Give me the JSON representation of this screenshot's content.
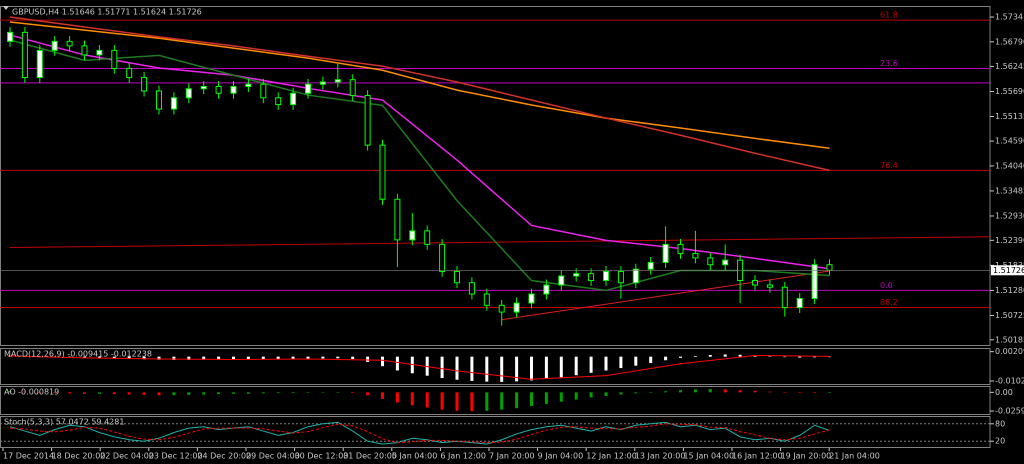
{
  "chart_data": [
    {
      "type": "candlestick",
      "title": "GBPUSD,H4  1.51646 1.51771 1.51624 1.51726",
      "x_labels": [
        "17 Dec 2014",
        "18 Dec 20:00",
        "22 Dec 04:00",
        "23 Dec 12:00",
        "24 Dec 20:00",
        "29 Dec 04:00",
        "30 Dec 12:00",
        "31 Dec 20:00",
        "5 Jan 04:00",
        "6 Jan 12:00",
        "7 Jan 20:00",
        "9 Jan 04:00",
        "12 Jan 12:00",
        "13 Jan 20:00",
        "15 Jan 04:00",
        "16 Jan 12:00",
        "19 Jan 20:00",
        "21 Jan 04:00"
      ],
      "open": [
        1.568,
        1.57,
        1.56,
        1.566,
        1.568,
        1.567,
        1.565,
        1.566,
        1.562,
        1.56,
        1.557,
        1.553,
        1.5555,
        1.5575,
        1.558,
        1.5565,
        1.558,
        1.5585,
        1.5555,
        1.554,
        1.5565,
        1.5585,
        1.559,
        1.5595,
        1.556,
        1.545,
        1.533,
        1.524,
        1.526,
        1.523,
        1.517,
        1.5145,
        1.512,
        1.5095,
        1.508,
        1.51,
        1.512,
        1.514,
        1.516,
        1.5165,
        1.515,
        1.517,
        1.5145,
        1.5175,
        1.519,
        1.523,
        1.521,
        1.52,
        1.5185,
        1.5195,
        1.515,
        1.514,
        1.5135,
        1.509,
        1.511,
        1.5185
      ],
      "high": [
        1.5712,
        1.5712,
        1.5672,
        1.5692,
        1.5692,
        1.5682,
        1.5672,
        1.5672,
        1.5632,
        1.5612,
        1.5582,
        1.5567,
        1.5587,
        1.5592,
        1.5592,
        1.5592,
        1.5597,
        1.5597,
        1.5567,
        1.5577,
        1.5597,
        1.5602,
        1.563,
        1.5607,
        1.5572,
        1.5462,
        1.5342,
        1.53,
        1.5272,
        1.5242,
        1.5182,
        1.5157,
        1.5132,
        1.5107,
        1.5112,
        1.5132,
        1.5152,
        1.5172,
        1.5177,
        1.5177,
        1.5182,
        1.5182,
        1.5187,
        1.5202,
        1.527,
        1.5242,
        1.526,
        1.5212,
        1.523,
        1.5207,
        1.5162,
        1.5152,
        1.5147,
        1.5122,
        1.5197,
        1.5197
      ],
      "low": [
        1.5668,
        1.5588,
        1.5588,
        1.5648,
        1.5658,
        1.5638,
        1.5638,
        1.5608,
        1.5588,
        1.5558,
        1.5518,
        1.5518,
        1.5543,
        1.5563,
        1.5553,
        1.5553,
        1.5568,
        1.5543,
        1.5528,
        1.5528,
        1.5553,
        1.5573,
        1.5578,
        1.5548,
        1.5438,
        1.5318,
        1.518,
        1.5228,
        1.5218,
        1.5158,
        1.5133,
        1.5108,
        1.5083,
        1.505,
        1.5068,
        1.5088,
        1.5108,
        1.5128,
        1.5148,
        1.5138,
        1.5138,
        1.511,
        1.5133,
        1.5163,
        1.5178,
        1.5198,
        1.5188,
        1.5173,
        1.5173,
        1.51,
        1.5128,
        1.5123,
        1.507,
        1.5078,
        1.5098,
        1.5161
      ],
      "close": [
        1.57,
        1.56,
        1.566,
        1.568,
        1.567,
        1.565,
        1.566,
        1.562,
        1.56,
        1.557,
        1.553,
        1.5555,
        1.5575,
        1.558,
        1.5565,
        1.558,
        1.5585,
        1.5555,
        1.554,
        1.5565,
        1.5585,
        1.559,
        1.5595,
        1.556,
        1.545,
        1.533,
        1.524,
        1.526,
        1.523,
        1.517,
        1.5145,
        1.512,
        1.5095,
        1.508,
        1.51,
        1.512,
        1.514,
        1.516,
        1.5165,
        1.515,
        1.517,
        1.5145,
        1.5175,
        1.519,
        1.523,
        1.521,
        1.52,
        1.5185,
        1.5195,
        1.515,
        1.514,
        1.5135,
        1.509,
        1.511,
        1.5185,
        1.51726
      ],
      "bull_color": "#ffffff",
      "bear_color": "#000000",
      "wick_color": "#00ff00",
      "ylim": [
        1.5007,
        1.5754
      ],
      "yticks": [
        1.5734,
        {
          "value": 1.5679,
          "label": "1.56790"
        },
        1.56245,
        {
          "value": 1.5569,
          "label": "1.55690"
        },
        1.55135,
        {
          "value": 1.5459,
          "label": "1.54590"
        },
        {
          "value": 1.5404,
          "label": "1.54040"
        },
        1.53485,
        {
          "value": 1.5293,
          "label": "1.52930"
        },
        {
          "value": 1.5239,
          "label": "1.52390"
        },
        1.51835,
        {
          "value": 1.5128,
          "label": "1.51280"
        },
        1.50725,
        1.50185
      ],
      "ma_x": [
        0,
        5,
        10,
        15,
        20,
        25,
        30,
        35,
        40,
        45,
        50,
        55
      ],
      "moving_averages": [
        {
          "color": "#ff8c00",
          "values": [
            1.5723,
            1.5705,
            1.5687,
            1.5665,
            1.5643,
            1.5616,
            1.5572,
            1.5539,
            1.551,
            1.5488,
            1.5465,
            1.5443
          ]
        },
        {
          "color": "#d2312c",
          "values": [
            1.5734,
            1.5712,
            1.569,
            1.567,
            1.5647,
            1.5625,
            1.559,
            1.555,
            1.551,
            1.5472,
            1.5432,
            1.5394
          ]
        },
        {
          "color": "#ee22ee",
          "values": [
            1.5694,
            1.565,
            1.5621,
            1.5605,
            1.5576,
            1.555,
            1.5417,
            1.5272,
            1.5239,
            1.5221,
            1.5199,
            1.5176
          ]
        },
        {
          "color": "#1f7a1f",
          "values": [
            1.5683,
            1.5638,
            1.5649,
            1.5605,
            1.5561,
            1.5538,
            1.5327,
            1.515,
            1.5128,
            1.5172,
            1.5172,
            1.5161
          ]
        }
      ],
      "levels": [
        {
          "label": "61.8",
          "value": 1.5727,
          "color": "#c00000"
        },
        {
          "label": "23.6",
          "value": 1.562,
          "color": "#c000c0"
        },
        {
          "value": 1.5588,
          "color": "#c000c0"
        },
        {
          "label": "76.4",
          "value": 1.5394,
          "color": "#c00000"
        },
        {
          "label": "0.0",
          "value": 1.5128,
          "color": "#c000c0"
        },
        {
          "label": "88.2",
          "value": 1.509,
          "color": "#c00000"
        }
      ],
      "trendlines": [
        {
          "color": "#c00000",
          "x": [
            0,
            66
          ],
          "values": [
            1.5223,
            1.5247
          ]
        },
        {
          "color": "#e02020",
          "x": [
            33,
            55
          ],
          "values": [
            1.5063,
            1.5171
          ]
        }
      ]
    },
    {
      "type": "bar",
      "title": "MACD(12,26,9) -0.009415 -0.012238",
      "color": "#ffffff",
      "values": [
        0.0005,
        0.0002,
        -0.0002,
        -0.0003,
        -0.0004,
        -0.0006,
        -0.0007,
        -0.0008,
        -0.0009,
        -0.0011,
        -0.0013,
        -0.0014,
        -0.0014,
        -0.0013,
        -0.0013,
        -0.0012,
        -0.0011,
        -0.0011,
        -0.0011,
        -0.001,
        -0.0009,
        -0.0008,
        -0.0007,
        -0.001,
        -0.0022,
        -0.004,
        -0.0058,
        -0.007,
        -0.008,
        -0.009,
        -0.0097,
        -0.0102,
        -0.0105,
        -0.0106,
        -0.0104,
        -0.01,
        -0.0094,
        -0.0087,
        -0.0078,
        -0.0068,
        -0.0058,
        -0.0048,
        -0.0038,
        -0.0027,
        -0.0015,
        -0.0005,
        0.0003,
        0.0007,
        0.0009,
        0.0008,
        0.0005,
        0.0002,
        -0.0001,
        -0.0004,
        -0.0003,
        -0.0002
      ],
      "signal_x": [
        0,
        5,
        10,
        15,
        20,
        25,
        30,
        35,
        40,
        45,
        50,
        55
      ],
      "signal": {
        "color": "#ff0000",
        "values": [
          0.0003,
          -0.0005,
          -0.001,
          -0.0012,
          -0.001,
          -0.0015,
          -0.006,
          -0.0095,
          -0.008,
          -0.003,
          0.0005,
          0.0001
        ]
      },
      "ylim": [
        -0.0115,
        0.0028
      ],
      "yticks": [
        0.002095,
        -0.01024
      ]
    },
    {
      "type": "bar",
      "title": "AO -0.000819",
      "up_color": "#00a000",
      "down_color": "#ff0000",
      "values": [
        0.002,
        0.001,
        0.0005,
        -0.001,
        -0.0015,
        -0.002,
        -0.002,
        -0.0025,
        -0.003,
        -0.0035,
        -0.004,
        -0.004,
        -0.0035,
        -0.003,
        -0.0025,
        -0.002,
        -0.002,
        -0.0015,
        -0.001,
        -0.001,
        -0.0005,
        0.0,
        0.0005,
        -0.001,
        -0.004,
        -0.009,
        -0.014,
        -0.018,
        -0.021,
        -0.024,
        -0.0255,
        -0.026,
        -0.0255,
        -0.024,
        -0.022,
        -0.019,
        -0.016,
        -0.013,
        -0.01,
        -0.007,
        -0.005,
        -0.003,
        -0.0015,
        0.0,
        0.0015,
        0.003,
        0.004,
        0.0045,
        0.004,
        0.003,
        0.002,
        0.001,
        0.0,
        -0.0005,
        -0.0008,
        -0.0008
      ],
      "ylim": [
        -0.03,
        0.006
      ],
      "yticks": [
        {
          "value": 0,
          "label": "0.00"
        },
        -0.02591
      ]
    },
    {
      "type": "line",
      "title": "Stoch(5,3,3) 57.0472 59.4281",
      "series": [
        {
          "color": "#20b2aa",
          "values": [
            70,
            55,
            40,
            60,
            75,
            70,
            50,
            35,
            25,
            20,
            30,
            50,
            65,
            70,
            60,
            65,
            70,
            55,
            40,
            50,
            70,
            80,
            85,
            55,
            20,
            10,
            15,
            30,
            25,
            15,
            20,
            15,
            10,
            25,
            45,
            60,
            70,
            75,
            65,
            55,
            70,
            60,
            75,
            80,
            85,
            70,
            75,
            60,
            65,
            35,
            25,
            30,
            20,
            40,
            75,
            57
          ]
        },
        {
          "color": "#ff0000",
          "dashed": true,
          "values": [
            65,
            62,
            55,
            52,
            58,
            68,
            65,
            52,
            37,
            27,
            25,
            33,
            48,
            62,
            65,
            65,
            65,
            63,
            55,
            48,
            53,
            67,
            78,
            73,
            53,
            28,
            15,
            18,
            23,
            23,
            20,
            18,
            15,
            17,
            27,
            43,
            58,
            68,
            70,
            65,
            63,
            62,
            68,
            72,
            80,
            78,
            77,
            68,
            67,
            53,
            42,
            30,
            25,
            30,
            45,
            59
          ]
        }
      ],
      "ylim": [
        0,
        100
      ],
      "yticks": [
        80,
        20
      ]
    }
  ]
}
